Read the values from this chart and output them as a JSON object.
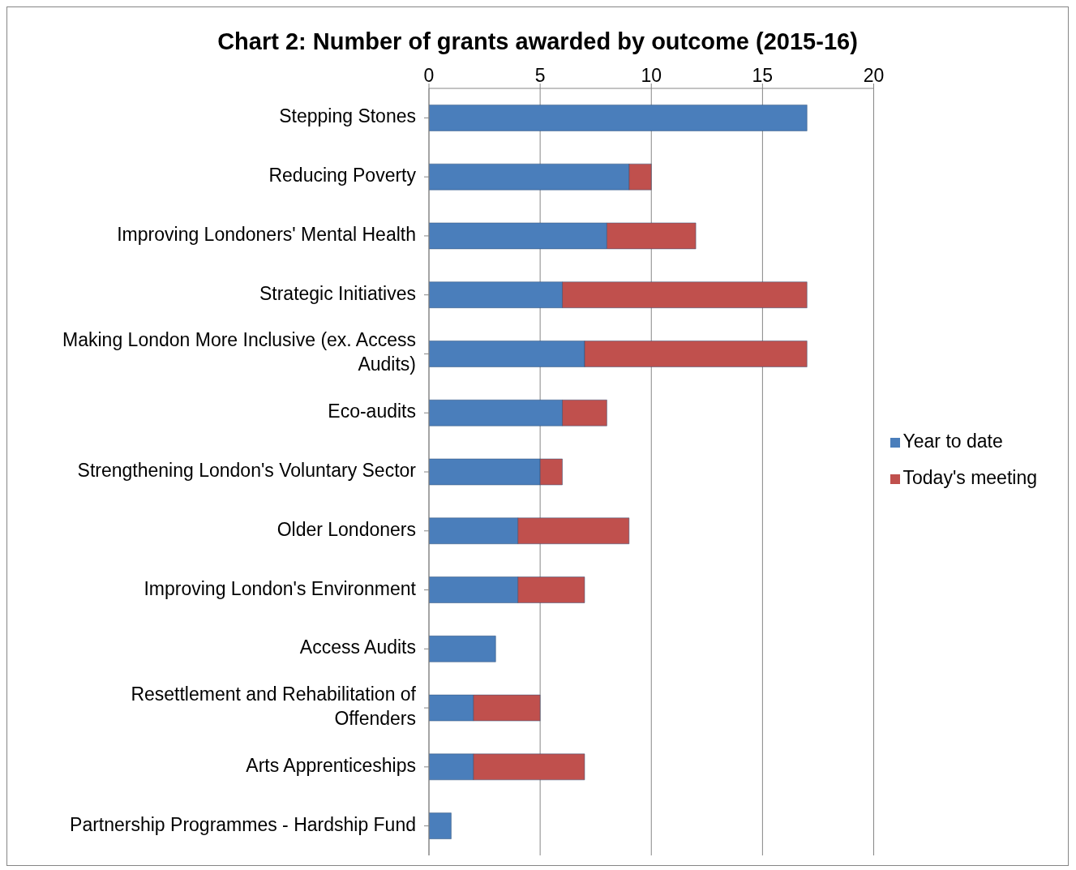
{
  "chart_data": {
    "type": "bar",
    "orientation": "horizontal",
    "stacked": true,
    "title": "Chart 2: Number of grants awarded by outcome (2015-16)",
    "categories": [
      "Stepping Stones",
      "Reducing Poverty",
      "Improving Londoners' Mental Health",
      "Strategic Initiatives",
      "Making London More Inclusive (ex. Access Audits)",
      "Eco-audits",
      "Strengthening London's Voluntary Sector",
      "Older Londoners",
      "Improving London's Environment",
      "Access Audits",
      "Resettlement and Rehabilitation of Offenders",
      "Arts Apprenticeships",
      "Partnership Programmes - Hardship Fund"
    ],
    "series": [
      {
        "name": "Year to date",
        "color": "#4a7ebb",
        "values": [
          17,
          9,
          8,
          6,
          7,
          6,
          5,
          4,
          4,
          3,
          2,
          2,
          1
        ]
      },
      {
        "name": "Today's meeting",
        "color": "#c0504d",
        "values": [
          0,
          1,
          4,
          11,
          10,
          2,
          1,
          5,
          3,
          0,
          3,
          5,
          0
        ]
      }
    ],
    "xlim": [
      0,
      20
    ],
    "xticks": [
      0,
      5,
      10,
      15,
      20
    ],
    "grid": "x",
    "legend": "right"
  }
}
